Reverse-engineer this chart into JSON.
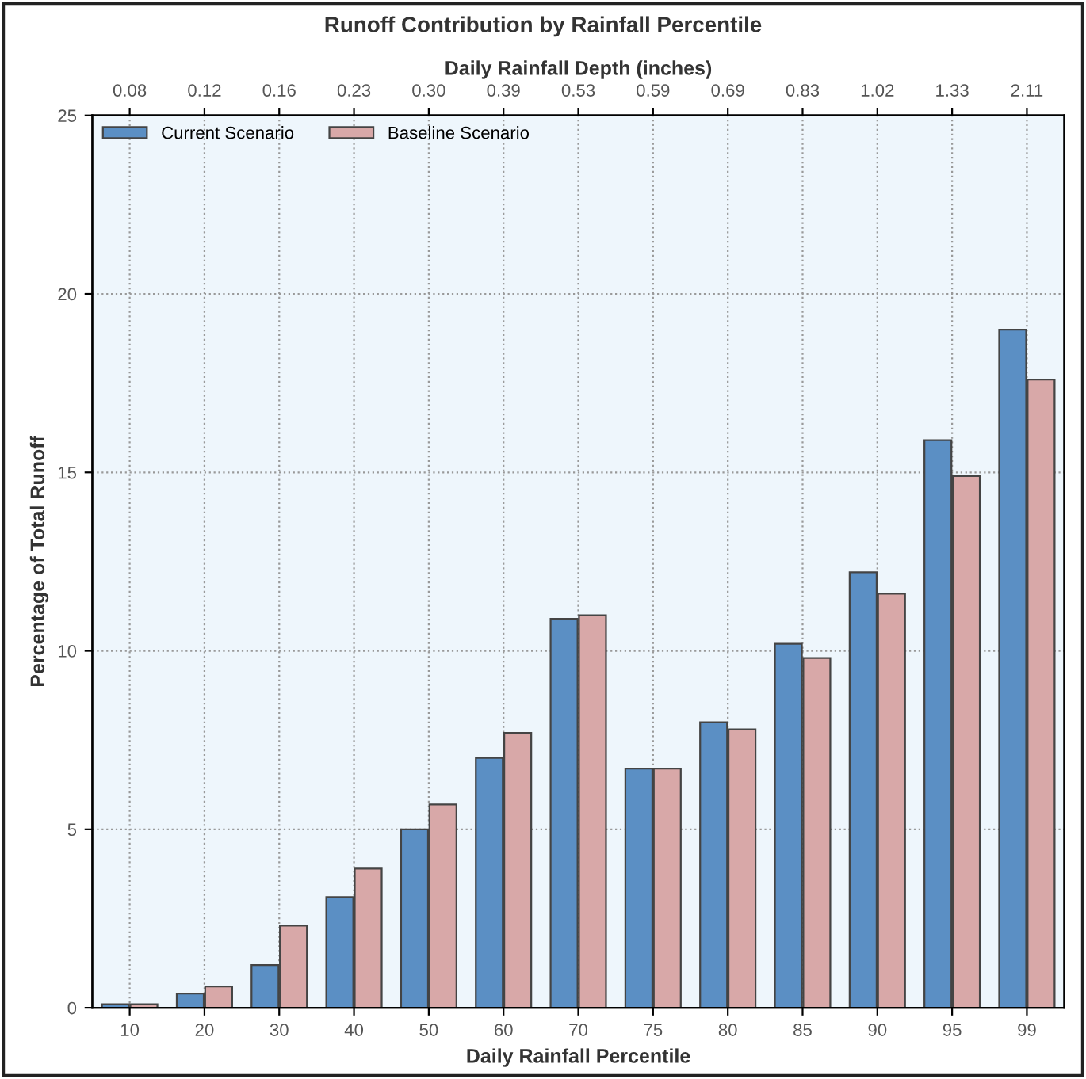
{
  "chart_data": {
    "type": "bar",
    "title": "Runoff Contribution by Rainfall Percentile",
    "xlabel": "Daily Rainfall Percentile",
    "ylabel": "Percentage of Total Runoff",
    "x2label": "Daily Rainfall Depth (inches)",
    "categories": [
      "10",
      "20",
      "30",
      "40",
      "50",
      "60",
      "70",
      "75",
      "80",
      "85",
      "90",
      "95",
      "99"
    ],
    "annotations": [
      "0.08",
      "0.12",
      "0.16",
      "0.23",
      "0.30",
      "0.39",
      "0.53",
      "0.59",
      "0.69",
      "0.83",
      "1.02",
      "1.33",
      "2.11"
    ],
    "series": [
      {
        "name": "Current Scenario",
        "color": "#5b8fc4",
        "values": [
          0.1,
          0.4,
          1.2,
          3.1,
          5.0,
          7.0,
          10.9,
          6.7,
          8.0,
          10.2,
          12.2,
          15.9,
          19.0
        ]
      },
      {
        "name": "Baseline Scenario",
        "color": "#d8a8a8",
        "values": [
          0.1,
          0.6,
          2.3,
          3.9,
          5.7,
          7.7,
          11.0,
          6.7,
          7.8,
          9.8,
          11.6,
          14.9,
          17.6
        ]
      }
    ],
    "ylim": [
      0,
      25
    ],
    "yticks": [
      0,
      5,
      10,
      15,
      20,
      25
    ],
    "grid": true,
    "legend": "top left"
  }
}
